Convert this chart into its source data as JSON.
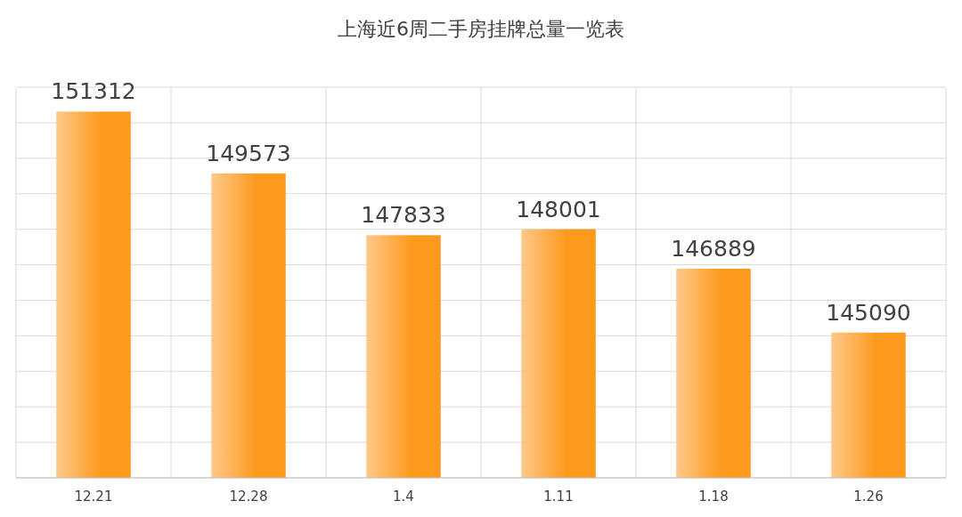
{
  "chart_data": {
    "type": "bar",
    "title": "上海近6周二手房挂牌总量一览表",
    "categories": [
      "12.21",
      "12.28",
      "1.4",
      "1.11",
      "1.18",
      "1.26"
    ],
    "values": [
      151312,
      149573,
      147833,
      148001,
      146889,
      145090
    ],
    "color": "#fd9a1e",
    "ylim": [
      141000,
      152000
    ],
    "yticks": [
      {
        "value": 141000,
        "label": null
      },
      {
        "value": 142000,
        "label": null
      },
      {
        "value": 143000,
        "label": null
      },
      {
        "value": 144000,
        "label": null
      },
      {
        "value": 145000,
        "label": null
      },
      {
        "value": 146000,
        "label": null
      },
      {
        "value": 147000,
        "label": null
      },
      {
        "value": 148000,
        "label": null
      },
      {
        "value": 149000,
        "label": null
      },
      {
        "value": 150000,
        "label": null
      },
      {
        "value": 151000,
        "label": null
      },
      {
        "value": 152000,
        "label": null
      }
    ],
    "grid": true,
    "data_labels": true,
    "tick_labels": "x"
  }
}
